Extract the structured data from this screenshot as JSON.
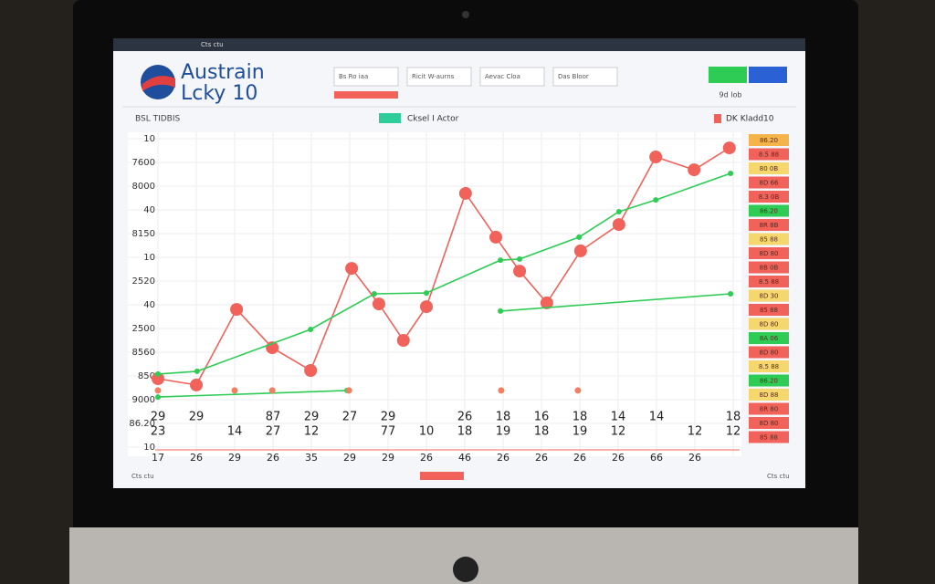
{
  "header": {
    "logo_line1": "Austrain",
    "logo_line2": "Lcky 10",
    "nav": [
      "Bs Ro iaa",
      "Ricit W-aurns",
      "Aevac Cloa",
      "Das Bloor"
    ],
    "status": "9d lob",
    "tab": "Cts ctu"
  },
  "toolbar": {
    "left": "BSL TIDBIS",
    "center": "Cksel I Actor",
    "right": "DK Kladd10"
  },
  "footer": {
    "left": "Cts ctu",
    "right": "Cts ctu"
  },
  "chart_data": {
    "type": "line",
    "y_axis_labels": [
      "10",
      "7600",
      "8000",
      "40",
      "8150",
      "10",
      "2520",
      "40",
      "2500",
      "8560",
      "850",
      "9000",
      "86.20",
      "10"
    ],
    "xlim": [
      0,
      15
    ],
    "ylim": [
      0,
      100
    ],
    "x_label_rows": [
      [
        "29",
        "29",
        null,
        "87",
        "29",
        "27",
        "29",
        null,
        "26",
        "18",
        "16",
        "18",
        "14",
        "14",
        null,
        "18"
      ],
      [
        "23",
        null,
        "14",
        "27",
        "12",
        null,
        "77",
        "10",
        "18",
        "19",
        "18",
        "19",
        "12",
        null,
        "12",
        "12"
      ],
      [
        "17",
        "26",
        "29",
        "26",
        "35",
        "29",
        "29",
        "26",
        "46",
        "26",
        "26",
        "26",
        "26",
        "66",
        "26",
        null
      ]
    ],
    "series": [
      {
        "color": "#f0625a",
        "x": [
          0,
          1,
          2.05,
          2.98,
          3.98,
          5.05,
          5.76,
          6.4,
          7,
          8.02,
          8.81,
          9.43,
          10.14,
          11.02,
          12.02,
          12.98,
          13.98,
          14.9
        ],
        "values": [
          10,
          7.7,
          35.3,
          21.3,
          13,
          50.3,
          37.3,
          24,
          36.3,
          77.7,
          61.7,
          49.3,
          37.7,
          56.7,
          66.3,
          91,
          86.3,
          94.3
        ]
      },
      {
        "color": "#2ecc55",
        "x": [
          0,
          1.02,
          3.98,
          5.64,
          7,
          8.93,
          9.43,
          10.98,
          12.02,
          12.98,
          14.93
        ],
        "values": [
          11.7,
          12.7,
          28,
          41,
          41.3,
          53.3,
          53.7,
          61.7,
          71,
          75.3,
          85
        ]
      },
      {
        "color": "#2ecc55",
        "x": [
          0,
          4.93,
          5.9,
          8.93,
          14.93
        ],
        "values": [
          3.3,
          5.7,
          null,
          34.7,
          41
        ]
      }
    ],
    "dots": {
      "color": "#f08060",
      "x": [
        0,
        2,
        2.98,
        4.98,
        8.95,
        10.95
      ],
      "values": [
        5.7,
        5.7,
        5.7,
        5.7,
        5.7,
        5.7
      ]
    },
    "badges": [
      {
        "text": "86.20",
        "color": "#f5b44a"
      },
      {
        "text": "8.5 88",
        "color": "#f0625a"
      },
      {
        "text": "80 0B",
        "color": "#f5d76e"
      },
      {
        "text": "8D 66",
        "color": "#f0625a"
      },
      {
        "text": "8.3 0B",
        "color": "#f0625a"
      },
      {
        "text": "86.20",
        "color": "#2ecc55"
      },
      {
        "text": "8R 8B",
        "color": "#f0625a"
      },
      {
        "text": "85 88",
        "color": "#f5d76e"
      },
      {
        "text": "8D 80",
        "color": "#f0625a"
      },
      {
        "text": "8B 0B",
        "color": "#f0625a"
      },
      {
        "text": "8.5 88",
        "color": "#f0625a"
      },
      {
        "text": "8D 30",
        "color": "#f5d76e"
      },
      {
        "text": "85 88",
        "color": "#f0625a"
      },
      {
        "text": "8D 80",
        "color": "#f5d76e"
      },
      {
        "text": "8A 06",
        "color": "#2ecc55"
      },
      {
        "text": "8D 80",
        "color": "#f0625a"
      },
      {
        "text": "8.5 88",
        "color": "#f5d76e"
      },
      {
        "text": "86.20",
        "color": "#2ecc55"
      },
      {
        "text": "8D 88",
        "color": "#f5d76e"
      },
      {
        "text": "8R 80",
        "color": "#f0625a"
      },
      {
        "text": "8D 80",
        "color": "#f0625a"
      },
      {
        "text": "85 88",
        "color": "#f0625a"
      }
    ]
  }
}
